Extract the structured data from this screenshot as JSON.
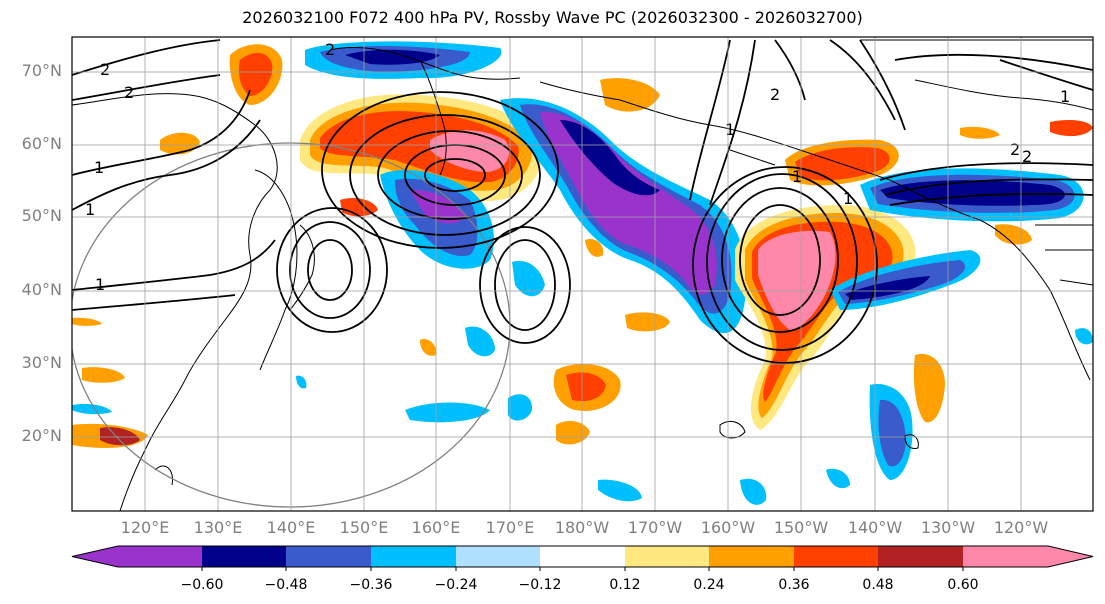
{
  "title": "2026032100 F072 400 hPa PV, Rossby Wave PC (2026032300 - 2026032700)",
  "map": {
    "lat_labels": [
      "70°N",
      "60°N",
      "50°N",
      "40°N",
      "30°N",
      "20°N"
    ],
    "lon_labels": [
      "120°E",
      "130°E",
      "140°E",
      "150°E",
      "160°E",
      "170°E",
      "180°W",
      "170°W",
      "160°W",
      "150°W",
      "140°W",
      "130°W",
      "120°W"
    ],
    "contour_labels": [
      "2",
      "2",
      "1",
      "1",
      "1",
      "2",
      "1",
      "2",
      "2",
      "1",
      "1",
      "1",
      "2"
    ],
    "colors": {
      "land_coast": "#000000",
      "grid": "#a0a0a0",
      "circle": "#808080"
    }
  },
  "colorbar": {
    "tick_labels": [
      "−0.60",
      "−0.48",
      "−0.36",
      "−0.24",
      "−0.12",
      "0.12",
      "0.24",
      "0.36",
      "0.48",
      "0.60"
    ],
    "bins": [
      {
        "color": "#9933cc"
      },
      {
        "color": "#00008b"
      },
      {
        "color": "#3a5bcc"
      },
      {
        "color": "#00bfff"
      },
      {
        "color": "#b0e0ff"
      },
      {
        "color": "#ffffff"
      },
      {
        "color": "#ffe880"
      },
      {
        "color": "#ffa000"
      },
      {
        "color": "#ff4000"
      },
      {
        "color": "#b22222"
      },
      {
        "color": "#ff88aa"
      }
    ]
  }
}
